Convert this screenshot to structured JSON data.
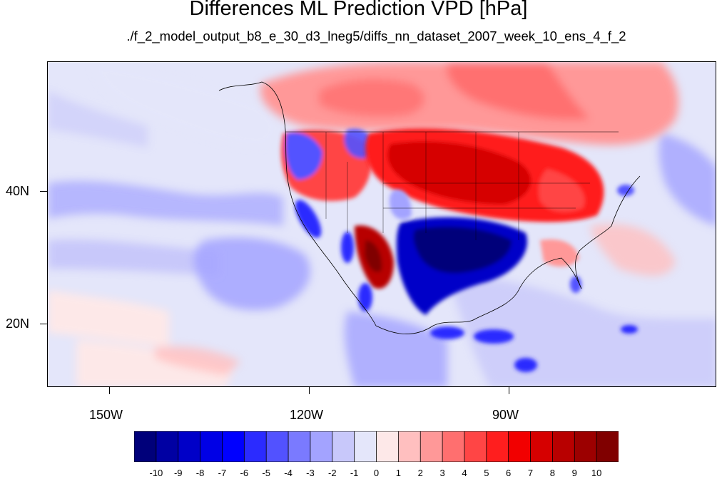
{
  "title": "Differences ML Prediction VPD [hPa]",
  "subtitle": "./f_2_model_output_b8_e_30_d3_lneg5/diffs_nn_dataset_2007_week_10_ens_4_f_2",
  "lat_labels": [
    "40N",
    "20N"
  ],
  "lon_labels": [
    "150W",
    "120W",
    "90W"
  ],
  "colorbar": {
    "labels": [
      "-10",
      "-9",
      "-8",
      "-7",
      "-6",
      "-5",
      "-4",
      "-3",
      "-2",
      "-1",
      "0",
      "1",
      "2",
      "3",
      "4",
      "5",
      "6",
      "7",
      "8",
      "9",
      "10"
    ],
    "colors": [
      "#00007a",
      "#0000a3",
      "#0000c8",
      "#0000e6",
      "#0000ff",
      "#2b2bff",
      "#5252ff",
      "#7a7aff",
      "#a3a3ff",
      "#c8c8fa",
      "#e4e6fa",
      "#fde8e8",
      "#ffbfbf",
      "#ff9898",
      "#ff6f6f",
      "#ff4545",
      "#ff1e1e",
      "#f20000",
      "#d60000",
      "#b80000",
      "#9c0000",
      "#800000"
    ]
  }
}
